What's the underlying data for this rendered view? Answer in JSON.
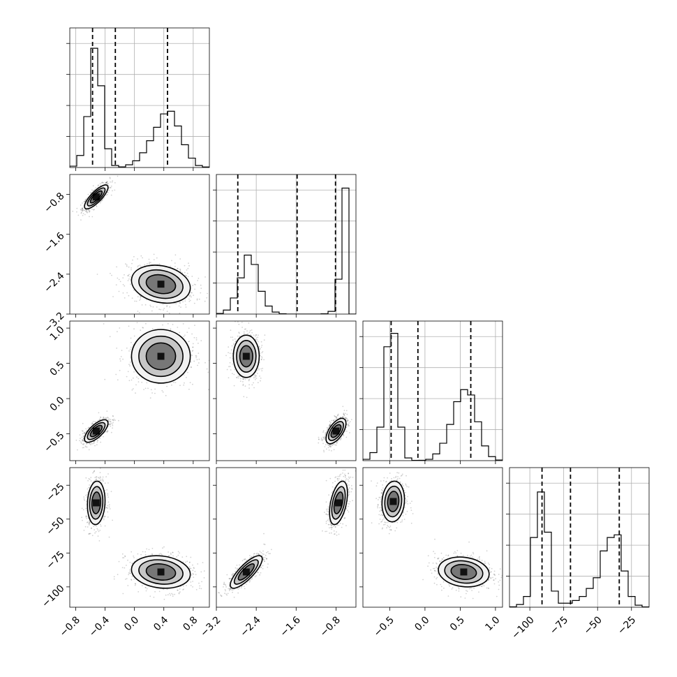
{
  "chart_data": {
    "type": "corner",
    "dimensions": [
      {
        "ticks": [
          -0.8,
          -0.4,
          0.0,
          0.4,
          0.8
        ],
        "tick_labels": [
          "−0.8",
          "−0.4",
          "0.0",
          "0.4",
          "0.8"
        ],
        "range": [
          -0.88,
          1.02
        ],
        "quantiles": [
          -0.57,
          -0.26,
          0.45
        ],
        "modes": [
          {
            "mean": -0.52,
            "sd": 0.06,
            "weight": 0.5
          },
          {
            "mean": 0.36,
            "sd": 0.16,
            "weight": 0.5
          }
        ]
      },
      {
        "ticks": [
          -3.2,
          -2.4,
          -1.6,
          -0.8
        ],
        "tick_labels": [
          "−3.2",
          "−2.4",
          "−1.6",
          "−0.8"
        ],
        "range": [
          -3.2,
          -0.4
        ],
        "quantiles": [
          -2.77,
          -1.58,
          -0.81
        ],
        "modes": [
          {
            "mean": -0.83,
            "sd": 0.06,
            "weight": 0.5
          },
          {
            "mean": -2.6,
            "sd": 0.17,
            "weight": 0.5
          }
        ]
      },
      {
        "ticks": [
          -0.5,
          0.0,
          0.5,
          1.0
        ],
        "tick_labels": [
          "−0.5",
          "0.0",
          "0.5",
          "1.0"
        ],
        "range": [
          -0.88,
          1.1
        ],
        "quantiles": [
          -0.48,
          -0.1,
          0.65
        ],
        "modes": [
          {
            "mean": -0.45,
            "sd": 0.07,
            "weight": 0.5
          },
          {
            "mean": 0.58,
            "sd": 0.16,
            "weight": 0.5
          }
        ]
      },
      {
        "ticks": [
          -100,
          -75,
          -50,
          -25
        ],
        "tick_labels": [
          "−100",
          "−75",
          "−50",
          "−25"
        ],
        "range": [
          -115,
          -12
        ],
        "quantiles": [
          -91,
          -70,
          -34
        ],
        "modes": [
          {
            "mean": -37,
            "sd": 6.5,
            "weight": 0.5
          },
          {
            "mean": -89,
            "sd": 6,
            "weight": 0.5
          }
        ]
      }
    ],
    "histograms": [
      {
        "dimension": 0,
        "bins": 20,
        "counts": [
          0.01,
          0.09,
          0.38,
          0.89,
          0.61,
          0.14,
          0.015,
          0.005,
          0.02,
          0.05,
          0.11,
          0.2,
          0.3,
          0.4,
          0.42,
          0.31,
          0.17,
          0.07,
          0.015,
          0.004
        ]
      },
      {
        "dimension": 1,
        "bins": 20,
        "counts": [
          0.005,
          0.03,
          0.12,
          0.27,
          0.44,
          0.37,
          0.17,
          0.06,
          0.015,
          0.002,
          0.0,
          0.0,
          0.0,
          0.0,
          0.0,
          0.002,
          0.02,
          0.26,
          0.94,
          0.0
        ]
      },
      {
        "dimension": 2,
        "bins": 20,
        "counts": [
          0.01,
          0.06,
          0.25,
          0.85,
          0.95,
          0.25,
          0.02,
          0.002,
          0.003,
          0.01,
          0.05,
          0.13,
          0.27,
          0.44,
          0.53,
          0.49,
          0.29,
          0.11,
          0.03,
          0.005
        ]
      },
      {
        "dimension": 3,
        "bins": 20,
        "counts": [
          0.003,
          0.02,
          0.08,
          0.52,
          0.86,
          0.56,
          0.12,
          0.03,
          0.03,
          0.05,
          0.08,
          0.14,
          0.22,
          0.42,
          0.52,
          0.54,
          0.27,
          0.08,
          0.015,
          0.002
        ]
      }
    ],
    "pairs": [
      {
        "x_dim": 0,
        "y_dim": 1,
        "blobs": [
          {
            "cx": -0.52,
            "cy": -0.85,
            "sx": 0.08,
            "sy": 0.12,
            "rho": 0.8,
            "w": 0.5
          },
          {
            "cx": 0.36,
            "cy": -2.6,
            "sx": 0.2,
            "sy": 0.19,
            "rho": -0.2,
            "w": 0.5
          }
        ]
      },
      {
        "x_dim": 0,
        "y_dim": 2,
        "blobs": [
          {
            "cx": 0.36,
            "cy": 0.6,
            "sx": 0.2,
            "sy": 0.19,
            "rho": 0.0,
            "w": 0.5
          },
          {
            "cx": -0.52,
            "cy": -0.46,
            "sx": 0.08,
            "sy": 0.08,
            "rho": 0.7,
            "w": 0.5
          }
        ]
      },
      {
        "x_dim": 0,
        "y_dim": 3,
        "blobs": [
          {
            "cx": -0.52,
            "cy": -38,
            "sx": 0.06,
            "sy": 8,
            "rho": 0.1,
            "w": 0.5
          },
          {
            "cx": 0.36,
            "cy": -89,
            "sx": 0.2,
            "sy": 6,
            "rho": -0.15,
            "w": 0.5
          }
        ]
      },
      {
        "x_dim": 1,
        "y_dim": 2,
        "blobs": [
          {
            "cx": -2.6,
            "cy": 0.6,
            "sx": 0.13,
            "sy": 0.15,
            "rho": 0.0,
            "w": 0.5
          },
          {
            "cx": -0.8,
            "cy": -0.46,
            "sx": 0.1,
            "sy": 0.09,
            "rho": 0.6,
            "w": 0.5
          }
        ]
      },
      {
        "x_dim": 1,
        "y_dim": 3,
        "blobs": [
          {
            "cx": -0.75,
            "cy": -38,
            "sx": 0.09,
            "sy": 8,
            "rho": 0.45,
            "w": 0.5
          },
          {
            "cx": -2.6,
            "cy": -89,
            "sx": 0.16,
            "sy": 6,
            "rho": 0.8,
            "w": 0.5
          }
        ]
      },
      {
        "x_dim": 2,
        "y_dim": 3,
        "blobs": [
          {
            "cx": -0.45,
            "cy": -37,
            "sx": 0.08,
            "sy": 7.5,
            "rho": 0.1,
            "w": 0.5
          },
          {
            "cx": 0.55,
            "cy": -89,
            "sx": 0.18,
            "sy": 5.5,
            "rho": -0.15,
            "w": 0.5
          }
        ]
      }
    ],
    "grid": true,
    "quantile_line_style": "dashed"
  }
}
